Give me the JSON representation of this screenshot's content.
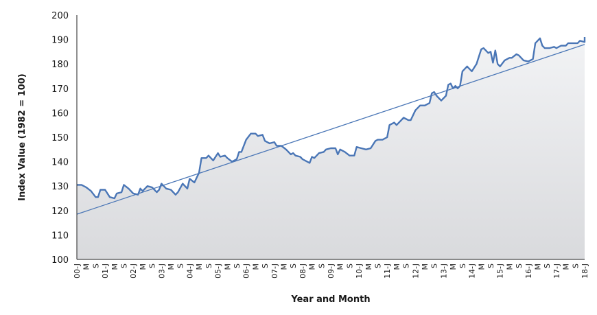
{
  "chart_data": {
    "type": "area",
    "xlabel": "Year and Month",
    "ylabel": "Index Value (1982 = 100)",
    "ylim": [
      100,
      200
    ],
    "yticks": [
      100,
      110,
      120,
      130,
      140,
      150,
      160,
      170,
      180,
      190,
      200
    ],
    "x_range_months": [
      "2000-01",
      "2018-01"
    ],
    "x_tick_labels": [
      "00-J",
      "M",
      "S",
      "01-J",
      "M",
      "S",
      "02-J",
      "M",
      "S",
      "03-J",
      "M",
      "S",
      "04-J",
      "M",
      "S",
      "05-J",
      "M",
      "S",
      "06-J",
      "M",
      "S",
      "07-J",
      "M",
      "S",
      "08-J",
      "M",
      "S",
      "09-J",
      "M",
      "S",
      "10-J",
      "M",
      "S",
      "11-J",
      "M",
      "S",
      "12-J",
      "M",
      "S",
      "13-J",
      "M",
      "S",
      "14-J",
      "M",
      "S",
      "15-J",
      "M",
      "S",
      "16-J",
      "M",
      "S",
      "17-J",
      "M",
      "S",
      "18-J"
    ],
    "series": [
      {
        "type": "line",
        "color": "#4a76b6",
        "points": [
          [
            "2000-01",
            130.5
          ],
          [
            "2000-03",
            130.5
          ],
          [
            "2000-05",
            129.5
          ],
          [
            "2000-07",
            128
          ],
          [
            "2000-09",
            125.5
          ],
          [
            "2000-10",
            125.5
          ],
          [
            "2000-11",
            128.5
          ],
          [
            "2001-01",
            128.5
          ],
          [
            "2001-03",
            125.5
          ],
          [
            "2001-05",
            125
          ],
          [
            "2001-06",
            127
          ],
          [
            "2001-08",
            127.5
          ],
          [
            "2001-09",
            130.5
          ],
          [
            "2001-11",
            129
          ],
          [
            "2002-01",
            127
          ],
          [
            "2002-03",
            126.5
          ],
          [
            "2002-04",
            129
          ],
          [
            "2002-05",
            128
          ],
          [
            "2002-07",
            130
          ],
          [
            "2002-09",
            129.5
          ],
          [
            "2002-11",
            127.5
          ],
          [
            "2002-12",
            128.5
          ],
          [
            "2003-01",
            131
          ],
          [
            "2003-03",
            129
          ],
          [
            "2003-05",
            128.5
          ],
          [
            "2003-07",
            126.5
          ],
          [
            "2003-08",
            127.5
          ],
          [
            "2003-10",
            131
          ],
          [
            "2003-12",
            129
          ],
          [
            "2004-01",
            133
          ],
          [
            "2004-03",
            131.5
          ],
          [
            "2004-05",
            135.5
          ],
          [
            "2004-06",
            141.5
          ],
          [
            "2004-08",
            141.5
          ],
          [
            "2004-09",
            142.5
          ],
          [
            "2004-11",
            140.5
          ],
          [
            "2005-01",
            143.5
          ],
          [
            "2005-02",
            142
          ],
          [
            "2005-04",
            142.5
          ],
          [
            "2005-05",
            141.5
          ],
          [
            "2005-07",
            140
          ],
          [
            "2005-09",
            141
          ],
          [
            "2005-10",
            144
          ],
          [
            "2005-11",
            144
          ],
          [
            "2006-01",
            149
          ],
          [
            "2006-03",
            151.5
          ],
          [
            "2006-05",
            151.5
          ],
          [
            "2006-06",
            150.5
          ],
          [
            "2006-08",
            151
          ],
          [
            "2006-09",
            148.5
          ],
          [
            "2006-11",
            147.5
          ],
          [
            "2007-01",
            148
          ],
          [
            "2007-02",
            146.5
          ],
          [
            "2007-04",
            146.5
          ],
          [
            "2007-06",
            145
          ],
          [
            "2007-08",
            143
          ],
          [
            "2007-09",
            143.5
          ],
          [
            "2007-10",
            142.5
          ],
          [
            "2007-12",
            142
          ],
          [
            "2008-01",
            141
          ],
          [
            "2008-03",
            140
          ],
          [
            "2008-04",
            139.5
          ],
          [
            "2008-05",
            142
          ],
          [
            "2008-06",
            141.5
          ],
          [
            "2008-08",
            143.5
          ],
          [
            "2008-10",
            144
          ],
          [
            "2008-11",
            145
          ],
          [
            "2009-01",
            145.5
          ],
          [
            "2009-03",
            145.5
          ],
          [
            "2009-04",
            143
          ],
          [
            "2009-05",
            145
          ],
          [
            "2009-07",
            144
          ],
          [
            "2009-09",
            142.5
          ],
          [
            "2009-11",
            142.5
          ],
          [
            "2009-12",
            146
          ],
          [
            "2010-02",
            145.5
          ],
          [
            "2010-04",
            145
          ],
          [
            "2010-06",
            145.5
          ],
          [
            "2010-08",
            148.5
          ],
          [
            "2010-09",
            149
          ],
          [
            "2010-11",
            149
          ],
          [
            "2011-01",
            150
          ],
          [
            "2011-02",
            155
          ],
          [
            "2011-04",
            156
          ],
          [
            "2011-05",
            155
          ],
          [
            "2011-06",
            156
          ],
          [
            "2011-08",
            158
          ],
          [
            "2011-10",
            157
          ],
          [
            "2011-11",
            157
          ],
          [
            "2012-01",
            161
          ],
          [
            "2012-03",
            163
          ],
          [
            "2012-05",
            163
          ],
          [
            "2012-07",
            164
          ],
          [
            "2012-08",
            168
          ],
          [
            "2012-09",
            168.5
          ],
          [
            "2012-10",
            167
          ],
          [
            "2012-12",
            165
          ],
          [
            "2013-02",
            167
          ],
          [
            "2013-03",
            171.5
          ],
          [
            "2013-04",
            172
          ],
          [
            "2013-05",
            170
          ],
          [
            "2013-06",
            171
          ],
          [
            "2013-07",
            170
          ],
          [
            "2013-08",
            171
          ],
          [
            "2013-09",
            177
          ],
          [
            "2013-11",
            179
          ],
          [
            "2014-01",
            177
          ],
          [
            "2014-03",
            180
          ],
          [
            "2014-05",
            186
          ],
          [
            "2014-06",
            186.5
          ],
          [
            "2014-08",
            184.5
          ],
          [
            "2014-09",
            185
          ],
          [
            "2014-10",
            180.5
          ],
          [
            "2014-11",
            185.5
          ],
          [
            "2014-12",
            180
          ],
          [
            "2015-01",
            179
          ],
          [
            "2015-03",
            181.5
          ],
          [
            "2015-05",
            182.5
          ],
          [
            "2015-06",
            182.5
          ],
          [
            "2015-08",
            184
          ],
          [
            "2015-09",
            183.5
          ],
          [
            "2015-11",
            181.5
          ],
          [
            "2016-01",
            181
          ],
          [
            "2016-03",
            182
          ],
          [
            "2016-04",
            188.5
          ],
          [
            "2016-06",
            190.5
          ],
          [
            "2016-07",
            187.5
          ],
          [
            "2016-08",
            186.5
          ],
          [
            "2016-10",
            186.5
          ],
          [
            "2016-12",
            187
          ],
          [
            "2017-01",
            186.5
          ],
          [
            "2017-03",
            187.5
          ],
          [
            "2017-05",
            187.5
          ],
          [
            "2017-06",
            188.5
          ],
          [
            "2017-08",
            188.5
          ],
          [
            "2017-10",
            188.5
          ],
          [
            "2017-11",
            189.5
          ],
          [
            "2018-01",
            189
          ],
          [
            "2018-02",
            191
          ]
        ]
      },
      {
        "type": "trendline",
        "color": "#4a76b6",
        "points": [
          [
            "2000-01",
            118.5
          ],
          [
            "2018-01",
            188
          ]
        ]
      }
    ],
    "grid": false,
    "legend": "none",
    "colors": {
      "area_top": "#f2f3f5",
      "area_bottom": "#d9dadd",
      "axis": "#222222"
    }
  }
}
